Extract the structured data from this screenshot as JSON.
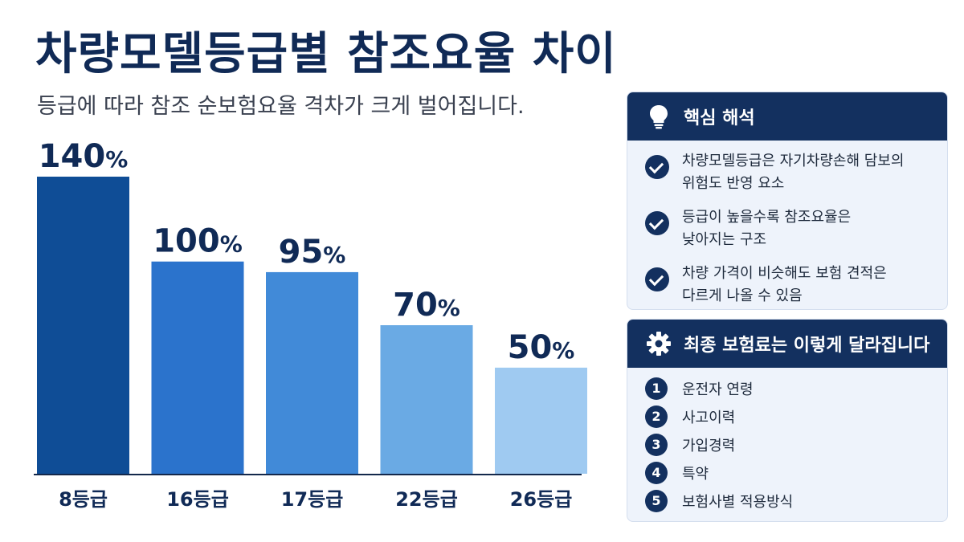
{
  "header": {
    "title": "차량모델등급별 참조요율 차이",
    "subtitle": "등급에 따라 참조 순보험요율 격차가 크게 벌어집니다."
  },
  "chart_data": {
    "type": "bar",
    "categories": [
      "8등급",
      "16등급",
      "17등급",
      "22등급",
      "26등급"
    ],
    "values": [
      140,
      100,
      95,
      70,
      50
    ],
    "value_labels": [
      "140%",
      "100%",
      "95%",
      "70%",
      "50%"
    ],
    "unit": "%",
    "ylim": [
      0,
      140
    ],
    "grid": false,
    "colors": [
      "#0f4d96",
      "#2b73cc",
      "#418ad8",
      "#6aaae4",
      "#9fcaf1"
    ]
  },
  "insights": {
    "title": "핵심 해석",
    "icon": "lightbulb-icon",
    "items": [
      {
        "line1": "차량모델등급은 자기차량손해 담보의",
        "line2": "위험도 반영 요소"
      },
      {
        "line1": "등급이 높을수록 참조요율은",
        "line2": "낮아지는 구조"
      },
      {
        "line1": "차량 가격이 비슷해도 보험 견적은",
        "line2": "다르게 나올 수 있음"
      }
    ]
  },
  "factors": {
    "title": "최종 보험료는 이렇게 달라집니다",
    "icon": "gear-icon",
    "items": [
      {
        "num": "1",
        "label": "운전자 연령"
      },
      {
        "num": "2",
        "label": "사고이력"
      },
      {
        "num": "3",
        "label": "가입경력"
      },
      {
        "num": "4",
        "label": "특약"
      },
      {
        "num": "5",
        "label": "보험사별 적용방식"
      }
    ]
  }
}
